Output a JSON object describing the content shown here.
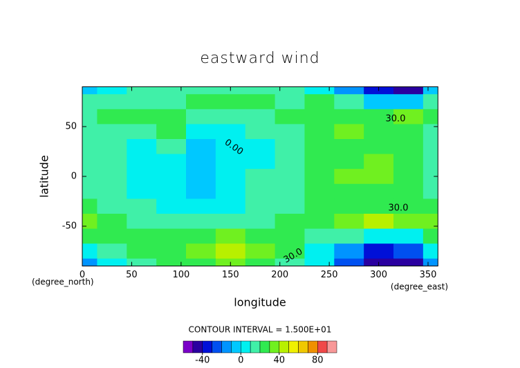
{
  "chart_data": {
    "type": "contour",
    "title": "eastward wind",
    "x_label": "longitude",
    "y_label": "latitude",
    "y_units": "(degree_north)",
    "x_units": "(degree_east)",
    "contour_interval": "CONTOUR INTERVAL = 1.500E+01",
    "contour_labels": [
      "0.00",
      "30.0",
      "30.0",
      "30.0"
    ],
    "xlim": [
      0,
      360
    ],
    "ylim": [
      -90,
      90
    ],
    "xticks": [
      0,
      50,
      100,
      150,
      200,
      250,
      300,
      350
    ],
    "yticks": [
      -50,
      0,
      50
    ],
    "x": [
      0,
      30,
      60,
      90,
      120,
      150,
      180,
      210,
      240,
      270,
      300,
      330,
      360
    ],
    "y": [
      90,
      75,
      60,
      45,
      30,
      15,
      0,
      -15,
      -30,
      -45,
      -60,
      -75,
      -90
    ],
    "z": [
      [
        -5,
        5,
        10,
        10,
        15,
        15,
        15,
        10,
        0,
        -20,
        -40,
        -45,
        -5
      ],
      [
        10,
        15,
        15,
        15,
        20,
        20,
        20,
        15,
        20,
        10,
        -5,
        -10,
        10
      ],
      [
        15,
        20,
        20,
        20,
        15,
        15,
        15,
        20,
        25,
        25,
        25,
        30,
        20
      ],
      [
        15,
        15,
        10,
        20,
        5,
        5,
        10,
        15,
        25,
        30,
        25,
        20,
        15
      ],
      [
        15,
        10,
        5,
        15,
        -5,
        0,
        5,
        15,
        20,
        20,
        20,
        20,
        15
      ],
      [
        15,
        10,
        5,
        0,
        -5,
        0,
        5,
        15,
        20,
        25,
        30,
        25,
        15
      ],
      [
        15,
        10,
        5,
        0,
        -5,
        5,
        10,
        15,
        20,
        35,
        30,
        20,
        15
      ],
      [
        15,
        10,
        5,
        5,
        -5,
        5,
        10,
        15,
        20,
        25,
        25,
        20,
        15
      ],
      [
        20,
        15,
        10,
        5,
        5,
        5,
        10,
        15,
        20,
        25,
        25,
        25,
        20
      ],
      [
        30,
        20,
        15,
        10,
        10,
        15,
        15,
        20,
        25,
        30,
        40,
        35,
        30
      ],
      [
        20,
        20,
        20,
        25,
        20,
        30,
        25,
        20,
        15,
        10,
        5,
        5,
        20
      ],
      [
        5,
        10,
        20,
        25,
        30,
        40,
        30,
        20,
        5,
        -20,
        -35,
        -30,
        5
      ],
      [
        -20,
        5,
        15,
        20,
        25,
        30,
        25,
        15,
        0,
        -30,
        -50,
        -45,
        -20
      ]
    ],
    "colorbar": {
      "levels": [
        -60,
        -50,
        -40,
        -30,
        -20,
        -10,
        0,
        10,
        20,
        30,
        40,
        50,
        60,
        70,
        80,
        90,
        100
      ],
      "colors": [
        "#7a00c8",
        "#2a00a0",
        "#0010d8",
        "#0050f0",
        "#0094ff",
        "#00c8ff",
        "#00f0f0",
        "#40f0a8",
        "#30ea50",
        "#70f020",
        "#b8f000",
        "#f0f000",
        "#f0c800",
        "#f09000",
        "#f04848",
        "#f89898"
      ],
      "ticks": [
        -40,
        0,
        40,
        80
      ]
    }
  }
}
